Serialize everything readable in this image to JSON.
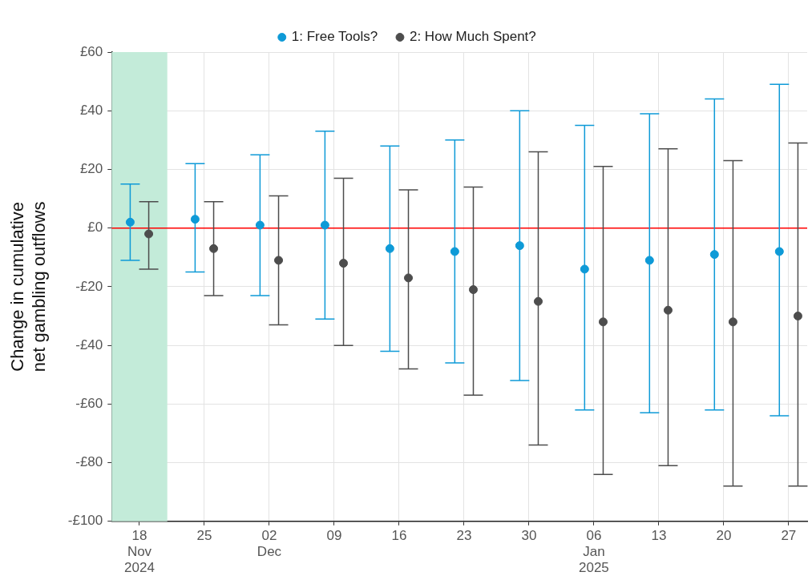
{
  "chart_data": {
    "type": "scatter",
    "ylabel": "Change in cumulative\nnet gambling outflows",
    "series": [
      {
        "name": "1: Free Tools?",
        "color": "#0e9ad7",
        "x": [
          "2024-11-17",
          "2024-11-24",
          "2024-12-01",
          "2024-12-08",
          "2024-12-15",
          "2024-12-22",
          "2024-12-29",
          "2025-01-05",
          "2025-01-12",
          "2025-01-19",
          "2025-01-26"
        ],
        "values": [
          2,
          3,
          1,
          1,
          -7,
          -8,
          -6,
          -14,
          -11,
          -9,
          -8
        ],
        "errors": [
          [
            -11,
            15
          ],
          [
            -15,
            22
          ],
          [
            -23,
            25
          ],
          [
            -31,
            33
          ],
          [
            -42,
            28
          ],
          [
            -46,
            30
          ],
          [
            -52,
            40
          ],
          [
            -62,
            35
          ],
          [
            -63,
            39
          ],
          [
            -62,
            44
          ],
          [
            -64,
            49
          ]
        ]
      },
      {
        "name": "2: How Much Spent?",
        "color": "#4d4d4d",
        "x": [
          "2024-11-19",
          "2024-11-26",
          "2024-12-03",
          "2024-12-10",
          "2024-12-17",
          "2024-12-24",
          "2024-12-31",
          "2025-01-07",
          "2025-01-14",
          "2025-01-21",
          "2025-01-28"
        ],
        "values": [
          -2,
          -7,
          -11,
          -12,
          -17,
          -21,
          -25,
          -32,
          -28,
          -32,
          -30
        ],
        "errors": [
          [
            -14,
            9
          ],
          [
            -23,
            9
          ],
          [
            -33,
            11
          ],
          [
            -40,
            17
          ],
          [
            -48,
            13
          ],
          [
            -57,
            14
          ],
          [
            -74,
            26
          ],
          [
            -84,
            21
          ],
          [
            -81,
            27
          ],
          [
            -88,
            23
          ],
          [
            -88,
            29
          ]
        ]
      }
    ],
    "xlim": [
      "2024-11-15",
      "2025-01-29"
    ],
    "xticks": [
      {
        "value": "2024-11-18",
        "label": "18\nNov\n2024"
      },
      {
        "value": "2024-11-25",
        "label": "25"
      },
      {
        "value": "2024-12-02",
        "label": "02\nDec"
      },
      {
        "value": "2024-12-09",
        "label": "09"
      },
      {
        "value": "2024-12-16",
        "label": "16"
      },
      {
        "value": "2024-12-23",
        "label": "23"
      },
      {
        "value": "2024-12-30",
        "label": "30"
      },
      {
        "value": "2025-01-06",
        "label": "06\nJan\n2025"
      },
      {
        "value": "2025-01-13",
        "label": "13"
      },
      {
        "value": "2025-01-20",
        "label": "20"
      },
      {
        "value": "2025-01-27",
        "label": "27"
      }
    ],
    "ylim": [
      -100,
      60
    ],
    "yticks": [
      {
        "value": -100,
        "label": "-£100"
      },
      {
        "value": -80,
        "label": "-£80"
      },
      {
        "value": -60,
        "label": "-£60"
      },
      {
        "value": -40,
        "label": "-£40"
      },
      {
        "value": -20,
        "label": "-£20"
      },
      {
        "value": 0,
        "label": "£0"
      },
      {
        "value": 20,
        "label": "£20"
      },
      {
        "value": 40,
        "label": "£40"
      },
      {
        "value": 60,
        "label": "£60"
      }
    ],
    "ref_lines": [
      {
        "axis": "y",
        "value": 0,
        "color": "#ff0000"
      }
    ],
    "bands": [
      {
        "axis": "x",
        "from": "2024-11-15",
        "to": "2024-11-21",
        "color": "#c3ebd9"
      }
    ],
    "grid": true,
    "legend": "top",
    "marker": "circle"
  }
}
